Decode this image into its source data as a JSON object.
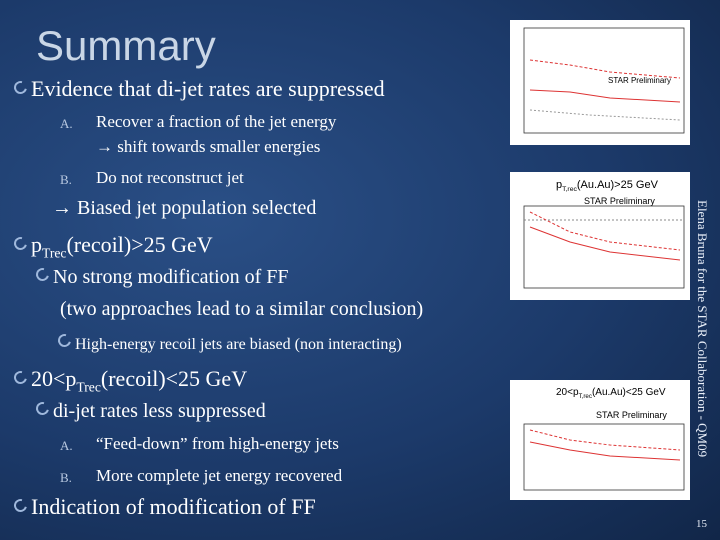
{
  "title": "Summary",
  "bullets": [
    {
      "text": "Evidence that di-jet rates are suppressed",
      "items": [
        {
          "marker": "A.",
          "lines": [
            "Recover a fraction of the jet energy",
            "→ shift towards smaller energies"
          ]
        },
        {
          "marker": "B.",
          "lines": [
            "Do not reconstruct jet"
          ]
        }
      ],
      "conclusion": "→ Biased jet population selected"
    },
    {
      "parts": [
        "p",
        "Trec",
        "(recoil)>25 GeV"
      ],
      "subs": [
        {
          "lines": [
            "No strong modification of FF",
            "(two approaches lead to  a similar conclusion)"
          ],
          "subs": [
            "High-energy recoil jets are biased (non interacting)"
          ]
        }
      ]
    },
    {
      "parts": [
        "20<p",
        "Trec",
        "(recoil)<25 GeV"
      ],
      "subs": [
        {
          "text": "di-jet rates less suppressed",
          "items": [
            {
              "marker": "A.",
              "text": "“Feed-down” from high-energy jets"
            },
            {
              "marker": "B.",
              "text": "More complete jet energy recovered"
            }
          ]
        }
      ]
    },
    {
      "text": "Indication of modification of FF"
    }
  ],
  "figures": [
    {
      "labels": [
        "STAR Preliminary"
      ]
    },
    {
      "labels": [
        [
          "p",
          "T,rec",
          "(Au.Au)>25 GeV"
        ],
        "STAR Preliminary"
      ]
    },
    {
      "labels": [
        [
          "20<p",
          "T,rec",
          "(Au.Au)<25 GeV"
        ],
        "STAR Preliminary"
      ]
    }
  ],
  "footer": {
    "author": "Elena Bruna for the STAR Collaboration - QM09",
    "page": "15"
  }
}
